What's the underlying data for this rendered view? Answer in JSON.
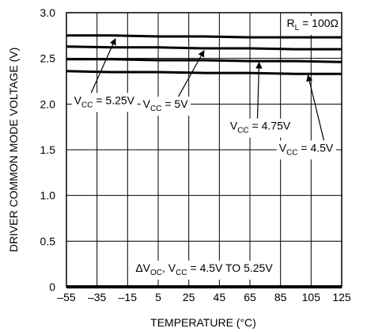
{
  "chart_data": {
    "type": "line",
    "xlabel": "TEMPERATURE (°C)",
    "ylabel": "DRIVER COMMON MODE VOLTAGE (V)",
    "xlim": [
      -55,
      125
    ],
    "ylim": [
      0,
      3.0
    ],
    "x_ticks": [
      -55,
      -35,
      -15,
      5,
      25,
      45,
      65,
      85,
      105,
      125
    ],
    "x_tick_labels": [
      "–55",
      "–35",
      "–15",
      "5",
      "25",
      "45",
      "65",
      "85",
      "105",
      "125"
    ],
    "y_ticks": [
      0,
      0.5,
      1.0,
      1.5,
      2.0,
      2.5,
      3.0
    ],
    "y_tick_labels": [
      "0",
      "0.5",
      "1.0",
      "1.5",
      "2.0",
      "2.5",
      "3.0"
    ],
    "grid": true,
    "series": [
      {
        "name": "VCC = 5.25V",
        "x": [
          -55,
          -25,
          5,
          35,
          65,
          95,
          125
        ],
        "values": [
          2.75,
          2.75,
          2.74,
          2.74,
          2.73,
          2.73,
          2.73
        ]
      },
      {
        "name": "VCC = 5V",
        "x": [
          -55,
          -25,
          5,
          35,
          65,
          95,
          125
        ],
        "values": [
          2.63,
          2.62,
          2.62,
          2.61,
          2.61,
          2.6,
          2.6
        ]
      },
      {
        "name": "VCC = 4.75V",
        "x": [
          -55,
          -25,
          5,
          35,
          65,
          95,
          125
        ],
        "values": [
          2.49,
          2.49,
          2.48,
          2.48,
          2.47,
          2.47,
          2.46
        ]
      },
      {
        "name": "VCC = 4.5V",
        "x": [
          -55,
          -25,
          5,
          35,
          65,
          95,
          125
        ],
        "values": [
          2.36,
          2.35,
          2.35,
          2.34,
          2.34,
          2.33,
          2.33
        ]
      },
      {
        "name": "ΔVOC",
        "x": [
          -55,
          125
        ],
        "values": [
          0.0,
          0.0
        ]
      }
    ],
    "annotations": [
      {
        "id": "rl",
        "main": "R",
        "sub": "L",
        "tail": " = 100Ω"
      },
      {
        "id": "v525",
        "main": "V",
        "sub": "CC",
        "tail": " = 5.25V",
        "x": -50,
        "y": 2.0,
        "arrow_to": [
          -23,
          2.75
        ]
      },
      {
        "id": "v5",
        "main": "V",
        "sub": "CC",
        "tail": " = 5V",
        "x": -5,
        "y": 1.96,
        "arrow_to": [
          35,
          2.62
        ]
      },
      {
        "id": "v475",
        "main": "V",
        "sub": "CC",
        "tail": " = 4.75V",
        "x": 52,
        "y": 1.72,
        "arrow_to": [
          71,
          2.49
        ]
      },
      {
        "id": "v45",
        "main": "V",
        "sub": "CC",
        "tail": " = 4.5V",
        "x": 84,
        "y": 1.48,
        "arrow_to": [
          103,
          2.35
        ]
      },
      {
        "id": "dvoc",
        "text": "ΔV",
        "sub1": "OC",
        "mid": ", V",
        "sub2": "CC",
        "tail": " = 4.5V TO 5.25V"
      }
    ]
  }
}
